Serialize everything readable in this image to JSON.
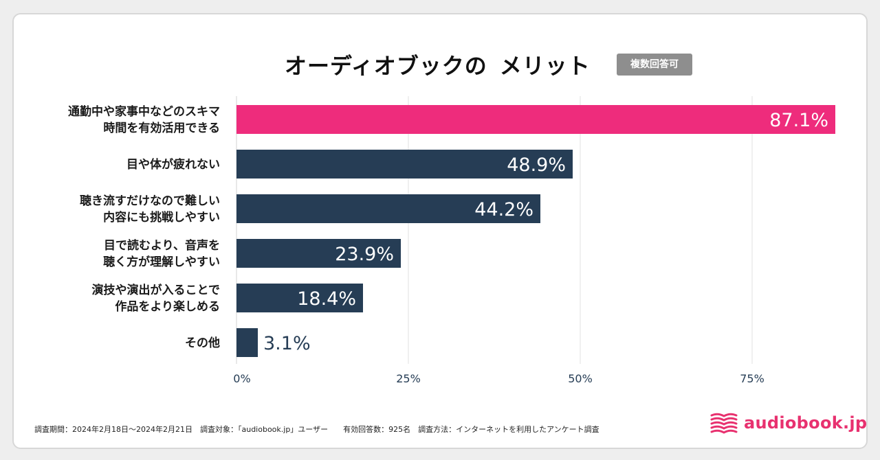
{
  "title": {
    "main": "オーディオブックの",
    "accent": "メリット",
    "badge": "複数回答可"
  },
  "colors": {
    "highlight_bar": "#ee2c7c",
    "bar": "#263d55",
    "title_underline": "#fde36d",
    "brand": "#e8316f"
  },
  "chart_data": {
    "type": "bar",
    "orientation": "horizontal",
    "title": "オーディオブックの メリット",
    "categories": [
      [
        "通勤中や家事中などのスキマ",
        "時間を有効活用できる"
      ],
      [
        "目や体が疲れない"
      ],
      [
        "聴き流すだけなので難しい",
        "内容にも挑戦しやすい"
      ],
      [
        "目で読むより、音声を",
        "聴く方が理解しやすい"
      ],
      [
        "演技や演出が入ることで",
        "作品をより楽しめる"
      ],
      [
        "その他"
      ]
    ],
    "values": [
      87.1,
      48.9,
      44.2,
      23.9,
      18.4,
      3.1
    ],
    "value_labels": [
      "87.1%",
      "48.9%",
      "44.2%",
      "23.9%",
      "18.4%",
      "3.1%"
    ],
    "xlim": [
      0,
      87.1
    ],
    "xticks": [
      0,
      25,
      50,
      75
    ],
    "xtick_labels": [
      "0%",
      "25%",
      "50%",
      "75%"
    ],
    "grid": true,
    "highlight_index": 0,
    "xlabel": "",
    "ylabel": ""
  },
  "footnote": "調査期間：2024年2月18日～2024年2月21日　調査対象：「audiobook.jp」ユーザー　　有効回答数：925名　調査方法：インターネットを利用したアンケート調査",
  "logo": {
    "text": "audiobook.jp",
    "icon": "book-stack-icon"
  }
}
